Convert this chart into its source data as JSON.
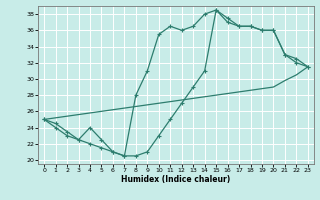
{
  "xlabel": "Humidex (Indice chaleur)",
  "bg_color": "#c8ece8",
  "grid_color": "#ffffff",
  "line_color": "#2d7d6e",
  "xlim": [
    -0.5,
    23.5
  ],
  "ylim": [
    19.5,
    39
  ],
  "yticks": [
    20,
    22,
    24,
    26,
    28,
    30,
    32,
    34,
    36,
    38
  ],
  "xticks": [
    0,
    1,
    2,
    3,
    4,
    5,
    6,
    7,
    8,
    9,
    10,
    11,
    12,
    13,
    14,
    15,
    16,
    17,
    18,
    19,
    20,
    21,
    22,
    23
  ],
  "line1_x": [
    0,
    1,
    2,
    3,
    4,
    5,
    6,
    7,
    8,
    9,
    10,
    11,
    12,
    13,
    14,
    15,
    16,
    17,
    18,
    19,
    20,
    21,
    22,
    23
  ],
  "line1_y": [
    25,
    24,
    23,
    22.5,
    24,
    22.5,
    21,
    20.5,
    28,
    31,
    35.5,
    36.5,
    36,
    36.5,
    38,
    38.5,
    37.5,
    36.5,
    36.5,
    36,
    36,
    33,
    32.5,
    31.5
  ],
  "line2_x": [
    0,
    1,
    2,
    3,
    4,
    5,
    6,
    7,
    8,
    9,
    10,
    11,
    12,
    13,
    14,
    15,
    16,
    17,
    18,
    19,
    20,
    21,
    22,
    23
  ],
  "line2_y": [
    25,
    25.2,
    25.4,
    25.6,
    25.8,
    26,
    26.2,
    26.4,
    26.6,
    26.8,
    27,
    27.2,
    27.4,
    27.6,
    27.8,
    28,
    28.2,
    28.4,
    28.6,
    28.8,
    29,
    29.8,
    30.5,
    31.5
  ],
  "line3_x": [
    0,
    1,
    2,
    3,
    4,
    5,
    6,
    7,
    8,
    9,
    10,
    11,
    12,
    13,
    14,
    15,
    16,
    17,
    18,
    19,
    20,
    21,
    22,
    23
  ],
  "line3_y": [
    25,
    24.5,
    23.5,
    22.5,
    22,
    21.5,
    21,
    20.5,
    20.5,
    21,
    23,
    25,
    27,
    29,
    31,
    38.5,
    37,
    36.5,
    36.5,
    36,
    36,
    33,
    32,
    31.5
  ]
}
